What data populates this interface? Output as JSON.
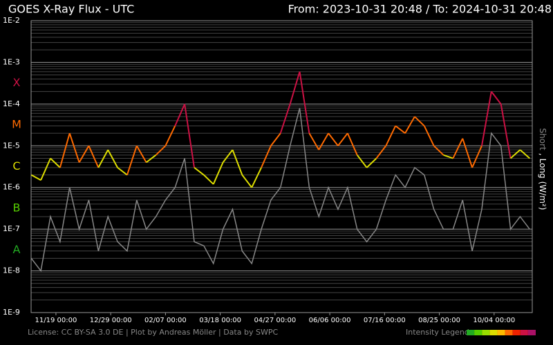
{
  "chart_data": {
    "type": "line",
    "title": "GOES X-Ray Flux - UTC",
    "subtitle": "From: 2023-10-31 20:48  /  To: 2024-10-31 20:48",
    "xlim": [
      "2023-10-31 20:48",
      "2024-10-31 20:48"
    ],
    "xticks": [
      {
        "value": "2023-11-19 00:00",
        "label": "11/19 00:00"
      },
      {
        "value": "2023-12-29 00:00",
        "label": "12/29 00:00"
      },
      {
        "value": "2024-02-07 00:00",
        "label": "02/07 00:00"
      },
      {
        "value": "2024-03-18 00:00",
        "label": "03/18 00:00"
      },
      {
        "value": "2024-04-27 00:00",
        "label": "04/27 00:00"
      },
      {
        "value": "2024-06-06 00:00",
        "label": "06/06 00:00"
      },
      {
        "value": "2024-07-16 00:00",
        "label": "07/16 00:00"
      },
      {
        "value": "2024-08-25 00:00",
        "label": "08/25 00:00"
      },
      {
        "value": "2024-10-04 00:00",
        "label": "10/04 00:00"
      }
    ],
    "log_scale": true,
    "ylim": [
      1e-09,
      0.01
    ],
    "yticks": [
      {
        "value": 1e-09,
        "label": "1E-9"
      },
      {
        "value": 1e-08,
        "label": "1E-8"
      },
      {
        "value": 1e-07,
        "label": "1E-7"
      },
      {
        "value": 1e-06,
        "label": "1E-6"
      },
      {
        "value": 1e-05,
        "label": "1E-5"
      },
      {
        "value": 0.0001,
        "label": "1E-4"
      },
      {
        "value": 0.001,
        "label": "1E-3"
      },
      {
        "value": 0.01,
        "label": "1E-2"
      }
    ],
    "grid": true,
    "minor_grid": true,
    "flare_classes": [
      {
        "label": "A",
        "value": 1e-08,
        "color": "#22aa22"
      },
      {
        "label": "B",
        "value": 1e-07,
        "color": "#55cc00"
      },
      {
        "label": "C",
        "value": 1e-06,
        "color": "#dddd00"
      },
      {
        "label": "M",
        "value": 1e-05,
        "color": "#ff6a00"
      },
      {
        "label": "X",
        "value": 0.0001,
        "color": "#cc1144"
      }
    ],
    "y_label_separator": ",",
    "y_label_unit": "(W/m²)",
    "x": [
      "2023-11-01 00:00",
      "2023-11-08 00:00",
      "2023-11-15 00:00",
      "2023-11-22 00:00",
      "2023-11-29 00:00",
      "2023-12-06 00:00",
      "2023-12-13 00:00",
      "2023-12-20 00:00",
      "2023-12-27 00:00",
      "2024-01-03 00:00",
      "2024-01-10 00:00",
      "2024-01-17 00:00",
      "2024-01-24 00:00",
      "2024-01-31 00:00",
      "2024-02-07 00:00",
      "2024-02-14 00:00",
      "2024-02-21 00:00",
      "2024-02-28 00:00",
      "2024-03-06 00:00",
      "2024-03-13 00:00",
      "2024-03-20 00:00",
      "2024-03-27 00:00",
      "2024-04-03 00:00",
      "2024-04-10 00:00",
      "2024-04-17 00:00",
      "2024-04-24 00:00",
      "2024-05-01 00:00",
      "2024-05-08 00:00",
      "2024-05-15 00:00",
      "2024-05-22 00:00",
      "2024-05-29 00:00",
      "2024-06-05 00:00",
      "2024-06-12 00:00",
      "2024-06-19 00:00",
      "2024-06-26 00:00",
      "2024-07-03 00:00",
      "2024-07-10 00:00",
      "2024-07-17 00:00",
      "2024-07-24 00:00",
      "2024-07-31 00:00",
      "2024-08-07 00:00",
      "2024-08-14 00:00",
      "2024-08-21 00:00",
      "2024-08-28 00:00",
      "2024-09-04 00:00",
      "2024-09-11 00:00",
      "2024-09-18 00:00",
      "2024-09-25 00:00",
      "2024-10-02 00:00",
      "2024-10-09 00:00",
      "2024-10-16 00:00",
      "2024-10-23 00:00",
      "2024-10-30 00:00"
    ],
    "series": [
      {
        "name": "Long",
        "values": [
          2e-06,
          1.5e-06,
          5e-06,
          3e-06,
          2e-05,
          4e-06,
          1e-05,
          3e-06,
          8e-06,
          3e-06,
          2e-06,
          1e-05,
          4e-06,
          6e-06,
          1e-05,
          3e-05,
          0.0001,
          3e-06,
          2e-06,
          1.2e-06,
          4e-06,
          8e-06,
          2e-06,
          1e-06,
          3e-06,
          1e-05,
          2e-05,
          0.0001,
          0.0006,
          2e-05,
          8e-06,
          2e-05,
          1e-05,
          2e-05,
          6e-06,
          3e-06,
          5e-06,
          1e-05,
          3e-05,
          2e-05,
          5e-05,
          3e-05,
          1e-05,
          6e-06,
          5e-06,
          1.5e-05,
          3e-06,
          1e-05,
          0.0002,
          0.0001,
          5e-06,
          8e-06,
          5e-06
        ]
      },
      {
        "name": "Short",
        "color": "#888888",
        "values": [
          2e-08,
          1e-08,
          2e-07,
          5e-08,
          1e-06,
          1e-07,
          5e-07,
          3e-08,
          2e-07,
          5e-08,
          3e-08,
          5e-07,
          1e-07,
          2e-07,
          5e-07,
          1e-06,
          5e-06,
          5e-08,
          4e-08,
          1.5e-08,
          1e-07,
          3e-07,
          3e-08,
          1.5e-08,
          1e-07,
          5e-07,
          1e-06,
          1e-05,
          8e-05,
          1e-06,
          2e-07,
          1e-06,
          3e-07,
          1e-06,
          1e-07,
          5e-08,
          1e-07,
          5e-07,
          2e-06,
          1e-06,
          3e-06,
          2e-06,
          3e-07,
          1e-07,
          1e-07,
          5e-07,
          3e-08,
          3e-07,
          2e-05,
          1e-05,
          1e-07,
          2e-07,
          1e-07
        ]
      }
    ],
    "footer": "License: CC BY-SA 3.0 DE | Plot by Andreas Möller | Data by SWPC",
    "intensity_legend": {
      "label": "Intensity Legend",
      "colors": [
        "#22aa22",
        "#55cc00",
        "#99dd00",
        "#dddd00",
        "#ffbb00",
        "#ff6a00",
        "#ee2200",
        "#cc1144",
        "#aa1166"
      ]
    }
  }
}
